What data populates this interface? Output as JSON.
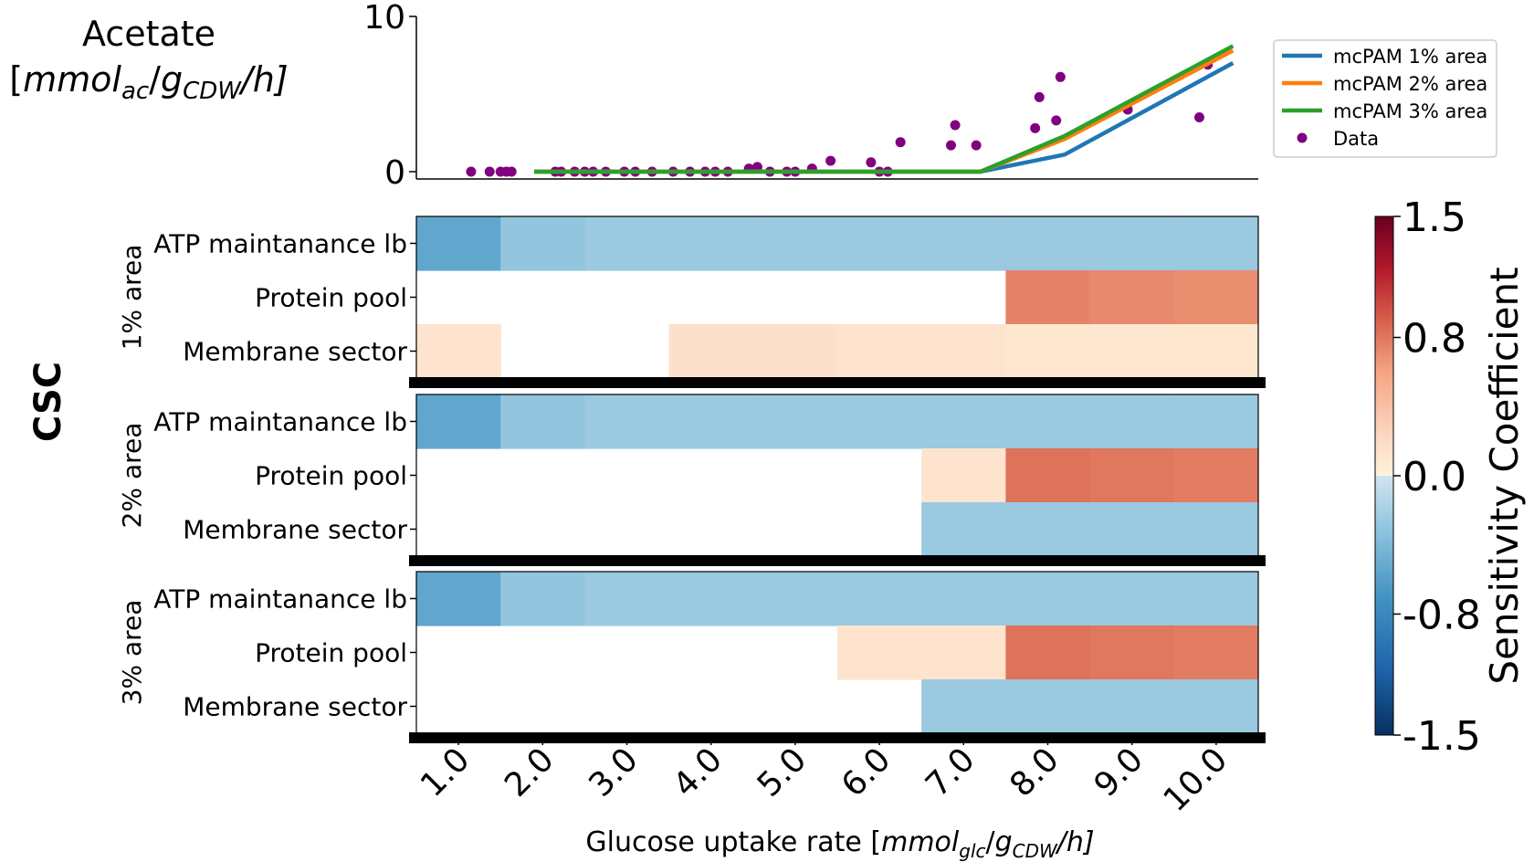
{
  "chart_data": [
    {
      "type": "line",
      "ylabel_line1": "Acetate",
      "ylabel_line2": {
        "prefix": "[",
        "base1": "mmol",
        "sub1": "ac",
        "mid": "/",
        "base2": "g",
        "sub2": "CDW",
        "suffix": "/h]"
      },
      "xlim": [
        0.5,
        10.5
      ],
      "ylim": [
        0,
        10
      ],
      "yticks": [
        "0",
        "10"
      ],
      "legend_position": "upper-right-outside",
      "series": [
        {
          "name": "mcPAM 1% area",
          "color": "#1f77b4",
          "x": [
            1.9,
            7.2,
            8.2,
            10.2
          ],
          "y": [
            0,
            0,
            1.1,
            7.0
          ]
        },
        {
          "name": "mcPAM 2% area",
          "color": "#ff7f0e",
          "x": [
            1.9,
            7.2,
            8.2,
            10.2
          ],
          "y": [
            0,
            0,
            2.1,
            7.8
          ]
        },
        {
          "name": "mcPAM 3% area",
          "color": "#2ca02c",
          "x": [
            1.9,
            7.2,
            8.2,
            10.2
          ],
          "y": [
            0,
            0,
            2.3,
            8.1
          ]
        }
      ],
      "scatter": {
        "name": "Data",
        "color": "#800080",
        "x": [
          1.15,
          1.37,
          1.5,
          1.57,
          1.63,
          2.15,
          2.22,
          2.38,
          2.5,
          2.6,
          2.75,
          2.97,
          3.1,
          3.3,
          3.55,
          3.75,
          3.93,
          4.05,
          4.2,
          4.45,
          4.55,
          4.7,
          4.9,
          5.0,
          5.2,
          5.42,
          5.9,
          6.0,
          6.1,
          6.25,
          6.85,
          6.9,
          7.15,
          7.85,
          7.9,
          8.1,
          8.15,
          8.95,
          9.8,
          9.9
        ],
        "y": [
          0.0,
          0.0,
          0.0,
          0.0,
          0.0,
          0.0,
          0.0,
          0.0,
          0.0,
          0.0,
          0.0,
          0.0,
          0.0,
          0.0,
          0.0,
          0.0,
          0.0,
          0.0,
          0.0,
          0.2,
          0.3,
          0.0,
          0.0,
          0.0,
          0.2,
          0.7,
          0.6,
          0.0,
          0.0,
          1.9,
          1.7,
          3.0,
          1.7,
          2.8,
          4.8,
          3.3,
          6.1,
          4.0,
          3.5,
          6.9
        ]
      }
    },
    {
      "type": "heatmap",
      "group_label": "CSC",
      "xticks": [
        "1.0",
        "2.0",
        "3.0",
        "4.0",
        "5.0",
        "6.0",
        "7.0",
        "8.0",
        "9.0",
        "10.0"
      ],
      "xlabel": {
        "prefix": "Glucose uptake rate [",
        "base1": "mmol",
        "sub1": "glc",
        "mid": "/",
        "base2": "g",
        "sub2": "CDW",
        "suffix": "/h]"
      },
      "rows": [
        "ATP maintanance lb",
        "Protein pool",
        "Membrane sector"
      ],
      "colorbar": {
        "label": "Sensitivity Coefficient",
        "ticks": [
          "1.5",
          "0.8",
          "0.0",
          "-0.8",
          "-1.5"
        ],
        "vmin": -1.5,
        "vmax": 1.5,
        "cmap_stops": [
          {
            "v": -1.5,
            "c": "#053061"
          },
          {
            "v": -1.1,
            "c": "#2166ac"
          },
          {
            "v": -0.7,
            "c": "#4393c3"
          },
          {
            "v": -0.3,
            "c": "#92c5de"
          },
          {
            "v": 0.0,
            "c": "#d1e5f0"
          },
          {
            "v": 0.001,
            "c": "#fff2d9"
          },
          {
            "v": 0.2,
            "c": "#fddbc7"
          },
          {
            "v": 0.6,
            "c": "#f4a582"
          },
          {
            "v": 0.9,
            "c": "#d6604d"
          },
          {
            "v": 1.2,
            "c": "#b2182b"
          },
          {
            "v": 1.5,
            "c": "#67001f"
          }
        ]
      },
      "panels": [
        {
          "label": "1% area",
          "values": [
            [
              -0.55,
              -0.3,
              -0.26,
              -0.26,
              -0.26,
              -0.26,
              -0.26,
              -0.26,
              -0.26,
              -0.26
            ],
            [
              null,
              null,
              null,
              null,
              null,
              null,
              null,
              0.75,
              0.72,
              0.7
            ],
            [
              0.12,
              null,
              null,
              0.16,
              0.16,
              0.12,
              0.12,
              0.1,
              0.1,
              0.1
            ]
          ]
        },
        {
          "label": "2% area",
          "values": [
            [
              -0.55,
              -0.3,
              -0.26,
              -0.26,
              -0.26,
              -0.26,
              -0.26,
              -0.26,
              -0.26,
              -0.26
            ],
            [
              null,
              null,
              null,
              null,
              null,
              null,
              0.12,
              0.82,
              0.8,
              0.78
            ],
            [
              null,
              null,
              null,
              null,
              null,
              null,
              -0.26,
              -0.26,
              -0.26,
              -0.26
            ]
          ]
        },
        {
          "label": "3% area",
          "values": [
            [
              -0.55,
              -0.3,
              -0.26,
              -0.26,
              -0.26,
              -0.26,
              -0.26,
              -0.26,
              -0.26,
              -0.26
            ],
            [
              null,
              null,
              null,
              null,
              null,
              0.12,
              0.12,
              0.82,
              0.8,
              0.78
            ],
            [
              null,
              null,
              null,
              null,
              null,
              null,
              -0.26,
              -0.26,
              -0.26,
              -0.26
            ]
          ]
        }
      ]
    }
  ]
}
